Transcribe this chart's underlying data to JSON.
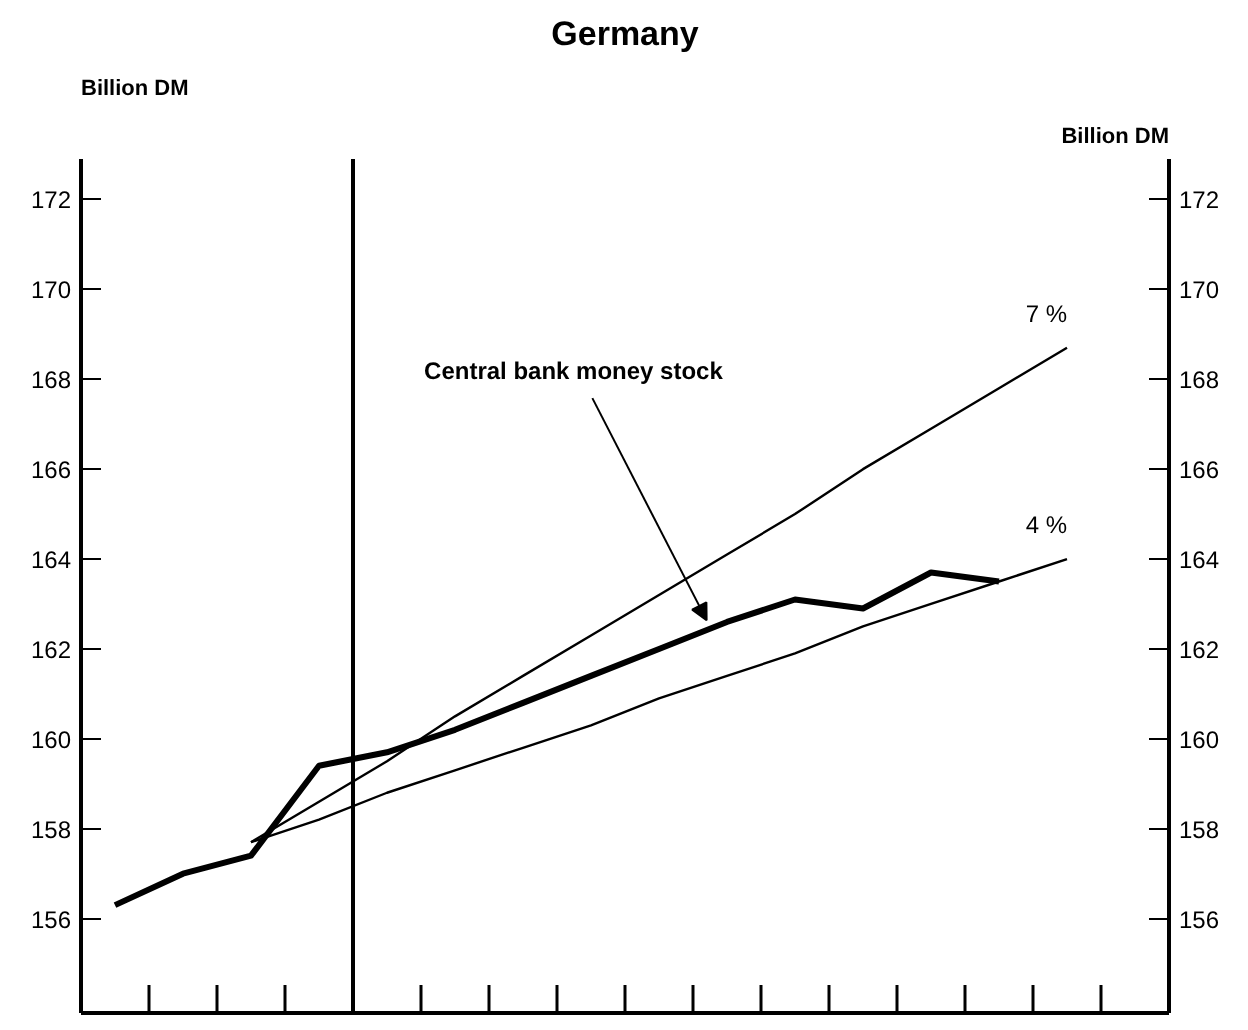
{
  "chart_data": {
    "type": "line",
    "title": "Germany",
    "ylabel": "Billion DM",
    "y2label": "Billion DM",
    "categories": [
      null,
      null,
      null,
      null,
      null,
      null,
      null,
      null,
      null,
      null,
      null,
      null,
      null,
      null,
      null
    ],
    "ylim": [
      153.9,
      172.9
    ],
    "yticks": [
      156,
      158,
      160,
      162,
      164,
      166,
      168,
      170,
      172
    ],
    "y2lim": [
      153.9,
      172.9
    ],
    "y2ticks": [
      156,
      158,
      160,
      162,
      164,
      166,
      168,
      170,
      172
    ],
    "tick_labels": "y",
    "grid": false,
    "marker": "none",
    "line_style": "solid",
    "series": [
      {
        "color": "#000000",
        "values": [
          156.3,
          157.0,
          157.4,
          159.4,
          159.7,
          160.2,
          160.8,
          161.4,
          162.0,
          162.6,
          163.1,
          162.9,
          163.7,
          163.5,
          null
        ]
      },
      {
        "name": "7 %",
        "color": "#000000",
        "values": [
          null,
          null,
          157.7,
          158.6,
          159.5,
          160.5,
          161.4,
          162.3,
          163.2,
          164.1,
          165.0,
          166.0,
          166.9,
          167.8,
          168.7
        ]
      },
      {
        "name": "4 %",
        "color": "#000000",
        "values": [
          null,
          null,
          157.7,
          158.2,
          158.8,
          159.3,
          159.8,
          160.3,
          160.9,
          161.4,
          161.9,
          162.5,
          163.0,
          163.5,
          164.0
        ]
      }
    ],
    "annotations": [
      "Central bank money stock"
    ]
  }
}
